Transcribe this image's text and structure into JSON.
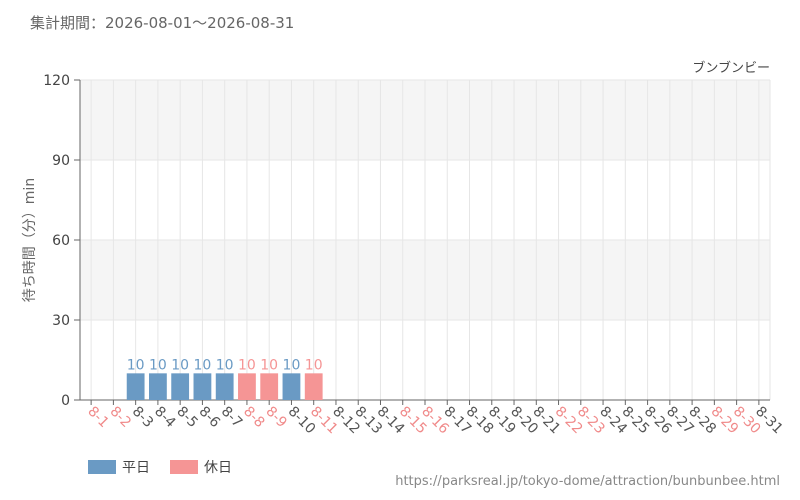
{
  "header": {
    "period_label": "集計期間：2026-08-01～2026-08-31"
  },
  "colors": {
    "weekday": "#6a9ac4",
    "holiday": "#f59595",
    "weekday_tick": "#555555",
    "holiday_tick": "#f08a8a",
    "grid": "#e6e6e6",
    "band": "#f5f5f5"
  },
  "chart_data": {
    "type": "bar",
    "title": "ブンブンビー",
    "ylabel": "待ち時間（分）min",
    "xlabel": "",
    "ylim": [
      0,
      120
    ],
    "yticks": [
      0,
      30,
      60,
      90,
      120
    ],
    "grid": true,
    "legend_position": "bottom-left",
    "categories": [
      "8-1",
      "8-2",
      "8-3",
      "8-4",
      "8-5",
      "8-6",
      "8-7",
      "8-8",
      "8-9",
      "8-10",
      "8-11",
      "8-12",
      "8-13",
      "8-14",
      "8-15",
      "8-16",
      "8-17",
      "8-18",
      "8-19",
      "8-20",
      "8-21",
      "8-22",
      "8-23",
      "8-24",
      "8-25",
      "8-26",
      "8-27",
      "8-28",
      "8-29",
      "8-30",
      "8-31"
    ],
    "day_type": [
      "holiday",
      "holiday",
      "weekday",
      "weekday",
      "weekday",
      "weekday",
      "weekday",
      "holiday",
      "holiday",
      "weekday",
      "holiday",
      "weekday",
      "weekday",
      "weekday",
      "holiday",
      "holiday",
      "weekday",
      "weekday",
      "weekday",
      "weekday",
      "weekday",
      "holiday",
      "holiday",
      "weekday",
      "weekday",
      "weekday",
      "weekday",
      "weekday",
      "holiday",
      "holiday",
      "weekday"
    ],
    "values": [
      null,
      null,
      10,
      10,
      10,
      10,
      10,
      10,
      10,
      10,
      10,
      null,
      null,
      null,
      null,
      null,
      null,
      null,
      null,
      null,
      null,
      null,
      null,
      null,
      null,
      null,
      null,
      null,
      null,
      null,
      null
    ],
    "legend": [
      {
        "label": "平日",
        "type": "weekday"
      },
      {
        "label": "休日",
        "type": "holiday"
      }
    ]
  },
  "footer": {
    "source_url": "https://parksreal.jp/tokyo-dome/attraction/bunbunbee.html"
  }
}
